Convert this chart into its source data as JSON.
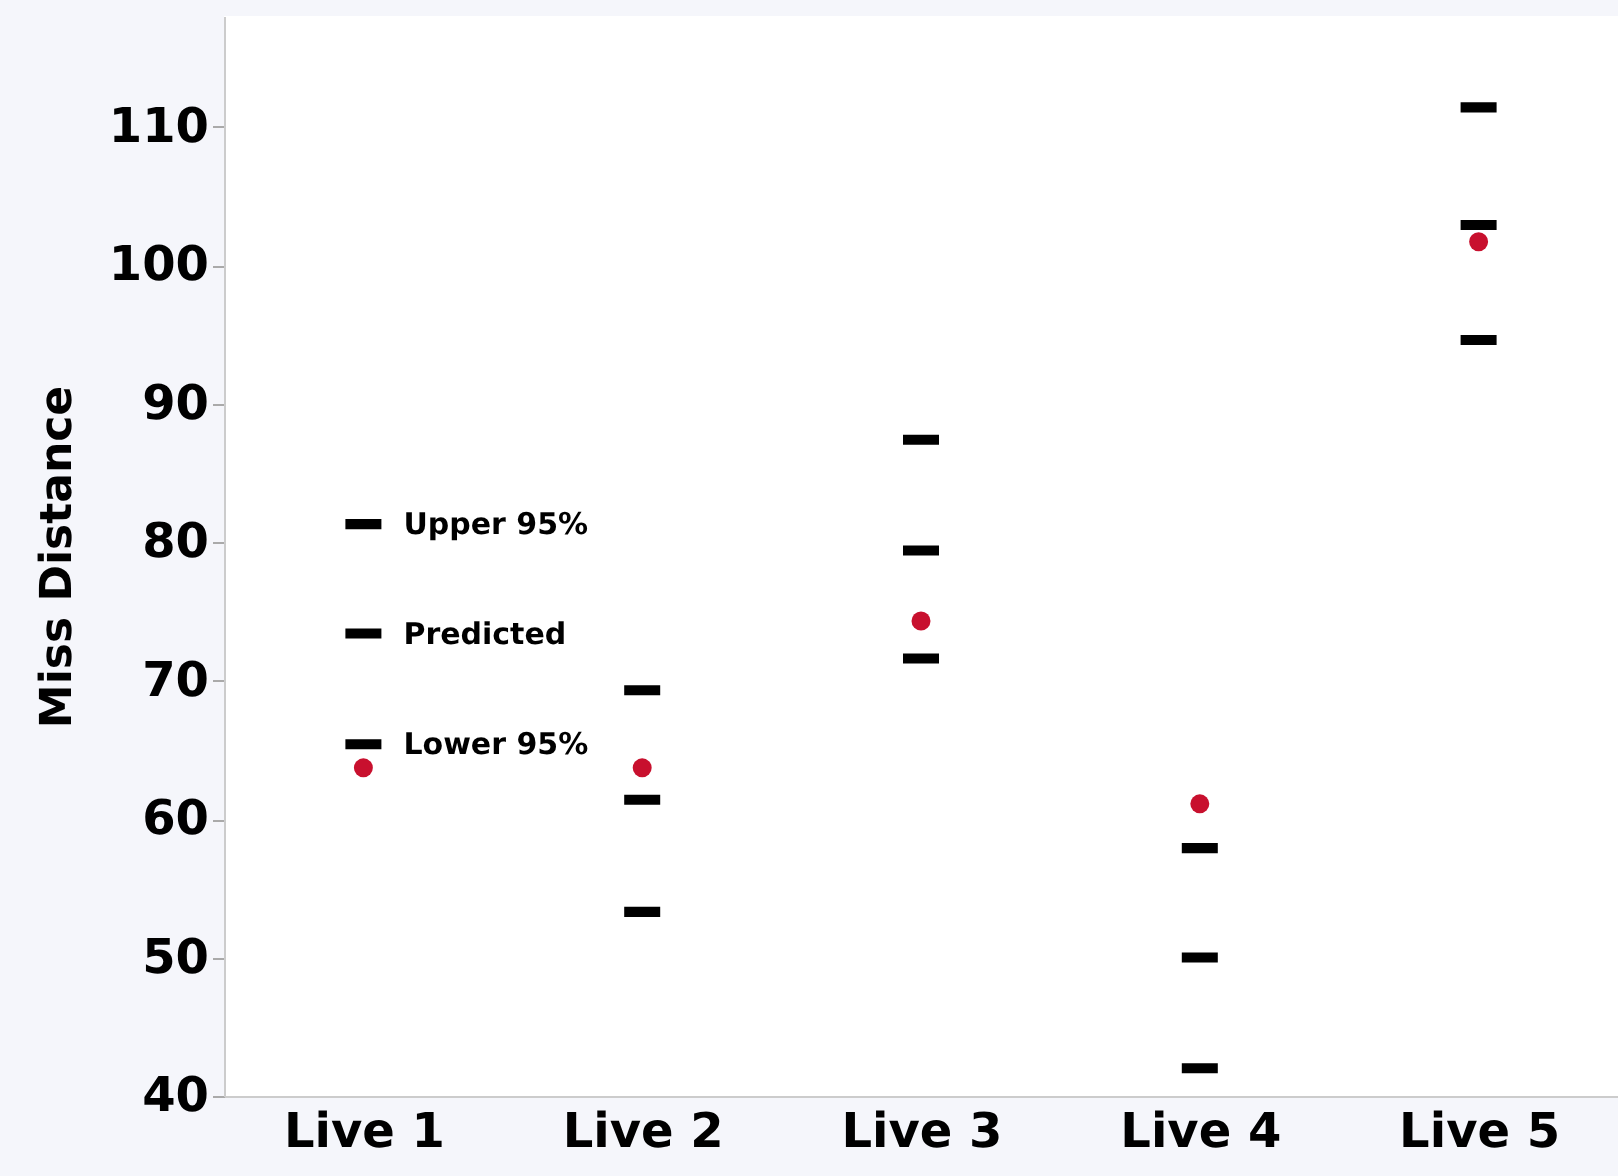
{
  "chart_data": {
    "type": "scatter",
    "ylabel": "Miss Distance",
    "categories": [
      "Live 1",
      "Live 2",
      "Live 3",
      "Live 4",
      "Live 5"
    ],
    "ylim": [
      40,
      118
    ],
    "yticks": [
      40,
      50,
      60,
      70,
      80,
      90,
      100,
      110
    ],
    "grid": false,
    "series": [
      {
        "name": "Upper 95%",
        "color": "#000000",
        "values": [
          81.3,
          69.3,
          87.4,
          57.9,
          111.4
        ]
      },
      {
        "name": "Predicted",
        "color": "#000000",
        "values": [
          73.4,
          61.4,
          79.4,
          50.0,
          102.9
        ]
      },
      {
        "name": "Lower 95%",
        "color": "#000000",
        "values": [
          65.4,
          53.3,
          71.6,
          42.0,
          94.6
        ]
      },
      {
        "marker": "circle",
        "color": "#c8102e",
        "values": [
          63.7,
          63.7,
          74.3,
          61.1,
          101.7
        ]
      }
    ]
  }
}
